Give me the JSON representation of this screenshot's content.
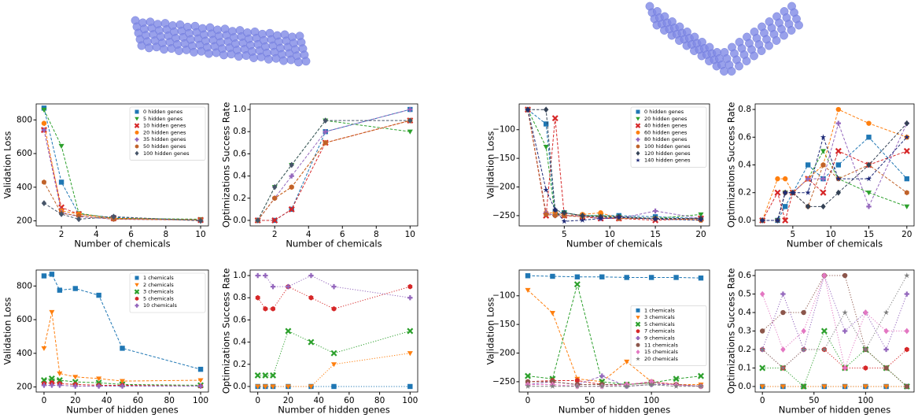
{
  "chart_data": [
    {
      "type": "line",
      "xlabel": "Number of chemicals",
      "ylabel": "Validation Loss",
      "linestyle": "dashed",
      "legend": "upper right",
      "x": [
        1,
        2,
        3,
        5,
        10
      ],
      "xlim": [
        0.55,
        10.45
      ],
      "xticks": [
        2,
        4,
        6,
        8,
        10
      ],
      "ylim": [
        170,
        895
      ],
      "yticks": [
        200,
        400,
        600,
        800
      ],
      "series": [
        {
          "name": "0 hidden genes",
          "color": "#1f77b4",
          "marker": "square",
          "values": [
            870,
            430,
            240,
            220,
            205
          ]
        },
        {
          "name": "5 hidden genes",
          "color": "#2ca02c",
          "marker": "tri-down",
          "values": [
            860,
            645,
            245,
            215,
            210
          ]
        },
        {
          "name": "10 hidden genes",
          "color": "#d62728",
          "marker": "x",
          "values": [
            740,
            280,
            240,
            215,
            205
          ]
        },
        {
          "name": "20 hidden genes",
          "color": "#ff7f0e",
          "marker": "circle",
          "values": [
            780,
            260,
            240,
            215,
            205
          ]
        },
        {
          "name": "35 hidden genes",
          "color": "#9467bd",
          "marker": "plus",
          "values": [
            740,
            250,
            225,
            210,
            205
          ]
        },
        {
          "name": "50 hidden genes",
          "color": "#c0622a",
          "marker": "hexagon",
          "values": [
            430,
            245,
            230,
            210,
            205
          ]
        },
        {
          "name": "100 hidden genes",
          "color": "#475569",
          "marker": "diamond",
          "values": [
            305,
            240,
            210,
            225,
            200
          ]
        }
      ]
    },
    {
      "type": "line",
      "xlabel": "Number of chemicals",
      "ylabel": "Optimizations Success Rate",
      "linestyle": "dashed",
      "x": [
        1,
        2,
        3,
        5,
        10
      ],
      "xlim": [
        0.55,
        10.45
      ],
      "xticks": [
        2,
        4,
        6,
        8,
        10
      ],
      "ylim": [
        -0.05,
        1.05
      ],
      "yticks": [
        {
          "value": 0,
          "label": "0.0"
        },
        0.2,
        0.4,
        0.6,
        0.8,
        {
          "value": 1,
          "label": "1.0"
        }
      ],
      "series": [
        {
          "color": "#1f77b4",
          "marker": "square",
          "values": [
            0,
            0,
            0.1,
            0.8,
            1.0
          ]
        },
        {
          "color": "#2ca02c",
          "marker": "tri-down",
          "values": [
            0,
            0.3,
            0.5,
            0.9,
            0.8
          ]
        },
        {
          "color": "#d62728",
          "marker": "x",
          "values": [
            0,
            0,
            0.1,
            0.7,
            0.9
          ]
        },
        {
          "color": "#ff7f0e",
          "marker": "circle",
          "values": [
            0,
            0.2,
            0.3,
            0.7,
            0.9
          ]
        },
        {
          "color": "#9467bd",
          "marker": "plus",
          "values": [
            0,
            0.2,
            0.4,
            0.8,
            1.0
          ]
        },
        {
          "color": "#c0622a",
          "marker": "hexagon",
          "values": [
            0,
            0.2,
            0.3,
            0.7,
            0.9
          ]
        },
        {
          "color": "#475569",
          "marker": "diamond",
          "values": [
            0,
            0.3,
            0.5,
            0.9,
            0.9
          ]
        }
      ]
    },
    {
      "type": "line",
      "xlabel": "Number of hidden genes",
      "ylabel": "Validation Loss",
      "linestyle": "dashed",
      "legend": "upper right",
      "x": [
        0,
        5,
        10,
        20,
        35,
        50,
        100
      ],
      "xlim": [
        -5,
        105
      ],
      "xticks": [
        0,
        20,
        40,
        60,
        80,
        100
      ],
      "ylim": [
        170,
        895
      ],
      "yticks": [
        200,
        400,
        600,
        800
      ],
      "series": [
        {
          "name": "1 chemicals",
          "color": "#1f77b4",
          "marker": "square",
          "values": [
            860,
            870,
            775,
            785,
            745,
            430,
            305
          ]
        },
        {
          "name": "2 chemicals",
          "color": "#ff7f0e",
          "marker": "tri-down",
          "values": [
            430,
            645,
            280,
            260,
            250,
            235,
            240
          ]
        },
        {
          "name": "3 chemicals",
          "color": "#2ca02c",
          "marker": "x",
          "values": [
            240,
            250,
            240,
            230,
            225,
            215,
            210
          ]
        },
        {
          "name": "5 chemicals",
          "color": "#d62728",
          "marker": "hexagon",
          "values": [
            220,
            225,
            220,
            215,
            210,
            210,
            205
          ]
        },
        {
          "name": "10 chemicals",
          "color": "#9467bd",
          "marker": "plus",
          "values": [
            210,
            210,
            210,
            205,
            205,
            205,
            205
          ]
        }
      ]
    },
    {
      "type": "line",
      "xlabel": "Number of hidden genes",
      "ylabel": "Optimizations Success Rate",
      "linestyle": "dotted",
      "x": [
        0,
        5,
        10,
        20,
        35,
        50,
        100
      ],
      "xlim": [
        -5,
        105
      ],
      "xticks": [
        0,
        20,
        40,
        60,
        80,
        100
      ],
      "ylim": [
        -0.05,
        1.05
      ],
      "yticks": [
        {
          "value": 0,
          "label": "0.0"
        },
        0.2,
        0.4,
        0.6,
        0.8,
        {
          "value": 1,
          "label": "1.0"
        }
      ],
      "series": [
        {
          "color": "#1f77b4",
          "marker": "square",
          "values": [
            0,
            0,
            0,
            0,
            0,
            0,
            0
          ]
        },
        {
          "color": "#ff7f0e",
          "marker": "tri-down",
          "values": [
            0,
            0,
            0,
            0,
            0,
            0.2,
            0.3
          ]
        },
        {
          "color": "#2ca02c",
          "marker": "x",
          "values": [
            0.1,
            0.1,
            0.1,
            0.5,
            0.4,
            0.3,
            0.5
          ]
        },
        {
          "color": "#d62728",
          "marker": "hexagon",
          "values": [
            0.8,
            0.7,
            0.7,
            0.9,
            0.8,
            0.7,
            0.9
          ]
        },
        {
          "color": "#9467bd",
          "marker": "plus",
          "values": [
            1.0,
            1.0,
            0.9,
            0.9,
            1.0,
            0.9,
            0.8
          ]
        }
      ]
    },
    {
      "type": "line",
      "xlabel": "Number of chemicals",
      "ylabel": "Validation Loss",
      "linestyle": "dashed",
      "legend": "upper right",
      "x": [
        1,
        3,
        4,
        5,
        7,
        9,
        11,
        15,
        20
      ],
      "xlim": [
        0.05,
        20.95
      ],
      "xticks": [
        5,
        10,
        15,
        20
      ],
      "ylim": [
        -268,
        -55
      ],
      "yticks": [
        {
          "value": -250,
          "label": "−250"
        },
        {
          "value": -200,
          "label": "−200"
        },
        {
          "value": -150,
          "label": "−150"
        },
        {
          "value": -100,
          "label": "−100"
        }
      ],
      "series": [
        {
          "name": "0 hidden genes",
          "color": "#1f77b4",
          "marker": "square",
          "values": [
            -65,
            -90,
            -245,
            -245,
            -250,
            -250,
            -250,
            -252,
            -255
          ]
        },
        {
          "name": "20 hidden genes",
          "color": "#2ca02c",
          "marker": "tri-down",
          "values": [
            -65,
            -130,
            -250,
            -245,
            -250,
            -250,
            -252,
            -255,
            -248
          ]
        },
        {
          "name": "40 hidden genes",
          "color": "#d62728",
          "marker": "x",
          "values": [
            -65,
            -250,
            -80,
            -250,
            -252,
            -255,
            -255,
            -258,
            -255
          ]
        },
        {
          "name": "60 hidden genes",
          "color": "#ff7f0e",
          "marker": "circle",
          "values": [
            -65,
            -245,
            -245,
            -250,
            -248,
            -245,
            -255,
            -255,
            -258
          ]
        },
        {
          "name": "80 hidden genes",
          "color": "#9467bd",
          "marker": "plus",
          "values": [
            -65,
            -245,
            -250,
            -250,
            -250,
            -255,
            -255,
            -242,
            -255
          ]
        },
        {
          "name": "100 hidden genes",
          "color": "#c0622a",
          "marker": "hexagon",
          "values": [
            -65,
            -248,
            -250,
            -250,
            -252,
            -252,
            -255,
            -255,
            -256
          ]
        },
        {
          "name": "120 hidden genes",
          "color": "#334155",
          "marker": "diamond",
          "values": [
            -65,
            -65,
            -240,
            -245,
            -250,
            -252,
            -252,
            -255,
            -255
          ]
        },
        {
          "name": "140 hidden genes",
          "color": "#1e2a78",
          "marker": "star",
          "values": [
            -65,
            -205,
            -240,
            -260,
            -258,
            -255,
            -253,
            -256,
            -258
          ]
        }
      ]
    },
    {
      "type": "line",
      "xlabel": "Number of chemicals",
      "ylabel": "Optimizations Success Rate",
      "linestyle": "dashed",
      "x": [
        1,
        3,
        4,
        5,
        7,
        9,
        11,
        15,
        20
      ],
      "xlim": [
        0.05,
        20.95
      ],
      "xticks": [
        5,
        10,
        15,
        20
      ],
      "ylim": [
        -0.04,
        0.84
      ],
      "yticks": [
        {
          "value": 0,
          "label": "0.0"
        },
        0.2,
        0.4,
        0.6,
        0.8
      ],
      "series": [
        {
          "color": "#1f77b4",
          "marker": "square",
          "values": [
            0,
            0,
            0.1,
            0.2,
            0.4,
            0.3,
            0.4,
            0.6,
            0.3
          ]
        },
        {
          "color": "#2ca02c",
          "marker": "tri-down",
          "values": [
            0,
            0,
            0.2,
            0.2,
            0.3,
            0.5,
            0.3,
            0.2,
            0.1
          ]
        },
        {
          "color": "#d62728",
          "marker": "x",
          "values": [
            0,
            0.2,
            0,
            0.2,
            0.3,
            0.2,
            0.5,
            0.4,
            0.5
          ]
        },
        {
          "color": "#ff7f0e",
          "marker": "circle",
          "values": [
            0,
            0.3,
            0.3,
            0.2,
            0.3,
            0.4,
            0.8,
            0.7,
            0.6
          ]
        },
        {
          "color": "#9467bd",
          "marker": "plus",
          "values": [
            0,
            0,
            0.2,
            0.2,
            0.3,
            0.3,
            0.7,
            0.1,
            0.7
          ]
        },
        {
          "color": "#c0622a",
          "marker": "hexagon",
          "values": [
            0,
            0,
            0.2,
            0.2,
            0.1,
            0.4,
            0.3,
            0.4,
            0.2
          ]
        },
        {
          "color": "#334155",
          "marker": "diamond",
          "values": [
            0,
            0,
            0.2,
            0.2,
            0.1,
            0.1,
            0.2,
            0.4,
            0.7
          ]
        },
        {
          "color": "#1e2a78",
          "marker": "star",
          "values": [
            0,
            0,
            0.2,
            0.2,
            0.2,
            0.6,
            0.3,
            0.3,
            0.6
          ]
        }
      ]
    },
    {
      "type": "line",
      "xlabel": "Number of hidden genes",
      "ylabel": "Validation Loss",
      "linestyle": "dashed",
      "legend": "center right",
      "x": [
        0,
        20,
        40,
        60,
        80,
        100,
        120,
        140
      ],
      "xlim": [
        -7,
        147
      ],
      "xticks": [
        0,
        50,
        100
      ],
      "ylim": [
        -268,
        -55
      ],
      "yticks": [
        {
          "value": -250,
          "label": "−250"
        },
        {
          "value": -200,
          "label": "−200"
        },
        {
          "value": -150,
          "label": "−150"
        },
        {
          "value": -100,
          "label": "−100"
        }
      ],
      "series": [
        {
          "name": "1 chemicals",
          "color": "#1f77b4",
          "marker": "square",
          "values": [
            -65,
            -66,
            -67,
            -67,
            -68,
            -68,
            -68,
            -69
          ]
        },
        {
          "name": "3 chemicals",
          "color": "#ff7f0e",
          "marker": "tri-down",
          "values": [
            -90,
            -130,
            -245,
            -250,
            -215,
            -250,
            -255,
            -255
          ]
        },
        {
          "name": "5 chemicals",
          "color": "#2ca02c",
          "marker": "x",
          "values": [
            -240,
            -245,
            -80,
            -250,
            -255,
            -252,
            -245,
            -240
          ]
        },
        {
          "name": "7 chemicals",
          "color": "#d62728",
          "marker": "hexagon",
          "values": [
            -250,
            -248,
            -248,
            -255,
            -255,
            -250,
            -255,
            -258
          ]
        },
        {
          "name": "9 chemicals",
          "color": "#9467bd",
          "marker": "plus",
          "values": [
            -255,
            -250,
            -255,
            -240,
            -258,
            -255,
            -255,
            -258
          ]
        },
        {
          "name": "11 chemicals",
          "color": "#8c564b",
          "marker": "circle",
          "values": [
            -250,
            -250,
            -255,
            -255,
            -255,
            -252,
            -255,
            -258
          ]
        },
        {
          "name": "15 chemicals",
          "color": "#e377c2",
          "marker": "diamond",
          "values": [
            -255,
            -255,
            -258,
            -258,
            -255,
            -250,
            -256,
            -258
          ]
        },
        {
          "name": "20 chemicals",
          "color": "#7f7f7f",
          "marker": "star",
          "values": [
            -258,
            -258,
            -258,
            -258,
            -258,
            -255,
            -258,
            -258
          ]
        }
      ]
    },
    {
      "type": "line",
      "xlabel": "Number of hidden genes",
      "ylabel": "Optimizations Success Rate",
      "linestyle": "dotted",
      "x": [
        0,
        20,
        40,
        60,
        80,
        100,
        120,
        140
      ],
      "xlim": [
        -7,
        147
      ],
      "xticks": [
        0,
        50,
        100
      ],
      "ylim": [
        -0.03,
        0.63
      ],
      "yticks": [
        {
          "value": 0,
          "label": "0.0"
        },
        0.1,
        0.2,
        0.3,
        0.4,
        0.5,
        0.6
      ],
      "series": [
        {
          "color": "#1f77b4",
          "marker": "square",
          "values": [
            0,
            0,
            0,
            0,
            0,
            0,
            0,
            0
          ]
        },
        {
          "color": "#ff7f0e",
          "marker": "tri-down",
          "values": [
            0,
            0,
            0,
            0,
            0,
            0,
            0,
            0
          ]
        },
        {
          "color": "#2ca02c",
          "marker": "x",
          "values": [
            0.1,
            0.1,
            0,
            0.3,
            0.1,
            0.2,
            0.1,
            0
          ]
        },
        {
          "color": "#d62728",
          "marker": "hexagon",
          "values": [
            0.2,
            0.1,
            0.2,
            0.2,
            0.1,
            0.1,
            0.1,
            0.2
          ]
        },
        {
          "color": "#9467bd",
          "marker": "plus",
          "values": [
            0.2,
            0.5,
            0.2,
            0.6,
            0.3,
            0.4,
            0.2,
            0.5
          ]
        },
        {
          "color": "#8c564b",
          "marker": "circle",
          "values": [
            0.3,
            0.4,
            0.4,
            0.6,
            0.6,
            0.2,
            0.1,
            0
          ]
        },
        {
          "color": "#e377c2",
          "marker": "diamond",
          "values": [
            0.5,
            0.2,
            0.3,
            0.6,
            0.1,
            0.4,
            0.3,
            0.3
          ]
        },
        {
          "color": "#7f7f7f",
          "marker": "star",
          "values": [
            0.2,
            0.1,
            0.2,
            0.2,
            0.4,
            0.2,
            0.4,
            0.6
          ]
        }
      ]
    }
  ]
}
